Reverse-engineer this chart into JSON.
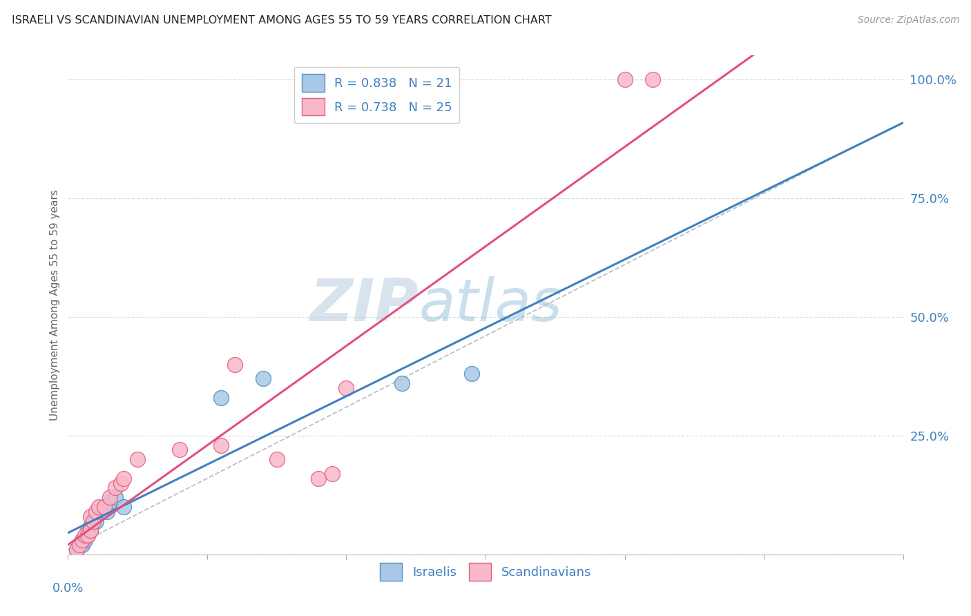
{
  "title": "ISRAELI VS SCANDINAVIAN UNEMPLOYMENT AMONG AGES 55 TO 59 YEARS CORRELATION CHART",
  "source": "Source: ZipAtlas.com",
  "ylabel": "Unemployment Among Ages 55 to 59 years",
  "xlim": [
    0.0,
    0.3
  ],
  "ylim": [
    0.0,
    1.05
  ],
  "yticks": [
    0.0,
    0.25,
    0.5,
    0.75,
    1.0
  ],
  "ytick_labels": [
    "",
    "25.0%",
    "50.0%",
    "75.0%",
    "100.0%"
  ],
  "legend_r1": "R = 0.838",
  "legend_n1": "N = 21",
  "legend_r2": "R = 0.738",
  "legend_n2": "N = 25",
  "color_blue_fill": "#a8c8e8",
  "color_pink_fill": "#f8b8c8",
  "color_blue_edge": "#5090c0",
  "color_pink_edge": "#e06080",
  "color_blue_line": "#4080c0",
  "color_pink_line": "#e05080",
  "color_dashed": "#b0b8c0",
  "color_text_blue": "#4080c0",
  "color_axis_text": "#4080c0",
  "watermark_zip": "ZIP",
  "watermark_atlas": "atlas",
  "israelis_x": [
    0.003,
    0.004,
    0.005,
    0.006,
    0.007,
    0.007,
    0.008,
    0.008,
    0.009,
    0.01,
    0.011,
    0.012,
    0.013,
    0.014,
    0.015,
    0.017,
    0.02,
    0.055,
    0.07,
    0.12,
    0.145
  ],
  "israelis_y": [
    0.01,
    0.02,
    0.02,
    0.03,
    0.04,
    0.05,
    0.05,
    0.06,
    0.07,
    0.07,
    0.09,
    0.09,
    0.1,
    0.09,
    0.11,
    0.12,
    0.1,
    0.33,
    0.37,
    0.36,
    0.38
  ],
  "scandinavians_x": [
    0.003,
    0.004,
    0.005,
    0.006,
    0.007,
    0.008,
    0.008,
    0.009,
    0.01,
    0.011,
    0.013,
    0.015,
    0.017,
    0.019,
    0.02,
    0.025,
    0.04,
    0.055,
    0.06,
    0.075,
    0.09,
    0.095,
    0.1,
    0.2,
    0.21
  ],
  "scandinavians_y": [
    0.01,
    0.02,
    0.03,
    0.04,
    0.04,
    0.05,
    0.08,
    0.07,
    0.09,
    0.1,
    0.1,
    0.12,
    0.14,
    0.15,
    0.16,
    0.2,
    0.22,
    0.23,
    0.4,
    0.2,
    0.16,
    0.17,
    0.35,
    1.0,
    1.0
  ],
  "isr_slope": 2.65,
  "isr_intercept": -0.005,
  "scan_slope": 3.4,
  "scan_intercept": -0.02
}
